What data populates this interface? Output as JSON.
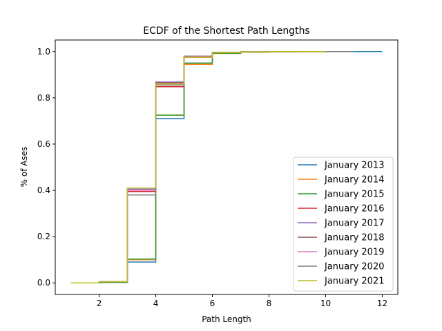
{
  "chart_data": {
    "type": "line",
    "step": "post",
    "title": "ECDF of the Shortest Path Lengths",
    "xlabel": "Path Length",
    "ylabel": "% of Ases",
    "xlim": [
      0.45,
      12.55
    ],
    "ylim": [
      -0.05,
      1.05
    ],
    "xticks": [
      2,
      4,
      6,
      8,
      10,
      12
    ],
    "yticks": [
      0.0,
      0.2,
      0.4,
      0.6,
      0.8,
      1.0
    ],
    "xtick_labels": [
      "2",
      "4",
      "6",
      "8",
      "10",
      "12"
    ],
    "ytick_labels": [
      "0.0",
      "0.2",
      "0.4",
      "0.6",
      "0.8",
      "1.0"
    ],
    "grid": false,
    "legend_position": "lower-right",
    "series": [
      {
        "name": "January 2013",
        "color": "#1f77b4",
        "x": [
          1,
          2,
          3,
          4,
          5,
          6,
          7,
          8,
          9,
          10,
          11,
          12
        ],
        "y": [
          0.0,
          0.002,
          0.09,
          0.71,
          0.95,
          0.993,
          0.998,
          0.999,
          0.9995,
          0.9998,
          1.0,
          1.0
        ]
      },
      {
        "name": "January 2014",
        "color": "#ff7f0e",
        "x": [
          1,
          2,
          3,
          4,
          5,
          6,
          7,
          8,
          9,
          10,
          11
        ],
        "y": [
          0.0,
          0.002,
          0.1,
          0.725,
          0.945,
          0.992,
          0.998,
          0.999,
          0.9995,
          1.0,
          1.0
        ]
      },
      {
        "name": "January 2015",
        "color": "#2ca02c",
        "x": [
          1,
          2,
          3,
          4,
          5,
          6,
          7,
          8,
          9,
          10,
          11
        ],
        "y": [
          0.0,
          0.002,
          0.103,
          0.725,
          0.95,
          0.993,
          0.998,
          0.999,
          0.9995,
          1.0,
          1.0
        ]
      },
      {
        "name": "January 2016",
        "color": "#d62728",
        "x": [
          1,
          2,
          3,
          4,
          5,
          6,
          7,
          8,
          9,
          10,
          11
        ],
        "y": [
          0.0,
          0.005,
          0.395,
          0.848,
          0.978,
          0.996,
          0.999,
          0.9995,
          1.0,
          1.0,
          1.0
        ]
      },
      {
        "name": "January 2017",
        "color": "#9467bd",
        "x": [
          1,
          2,
          3,
          4,
          5,
          6,
          7,
          8,
          9,
          10,
          11
        ],
        "y": [
          0.0,
          0.005,
          0.405,
          0.868,
          0.98,
          0.997,
          0.999,
          1.0,
          1.0,
          1.0,
          1.0
        ]
      },
      {
        "name": "January 2018",
        "color": "#8c564b",
        "x": [
          1,
          2,
          3,
          4,
          5,
          6,
          7,
          8,
          9,
          10,
          11
        ],
        "y": [
          0.0,
          0.005,
          0.41,
          0.865,
          0.98,
          0.997,
          0.999,
          1.0,
          1.0,
          1.0,
          1.0
        ]
      },
      {
        "name": "January 2019",
        "color": "#e377c2",
        "x": [
          1,
          2,
          3,
          4,
          5,
          6,
          7,
          8,
          9,
          10,
          11
        ],
        "y": [
          0.0,
          0.005,
          0.4,
          0.862,
          0.978,
          0.996,
          0.999,
          1.0,
          1.0,
          1.0,
          1.0
        ]
      },
      {
        "name": "January 2020",
        "color": "#7f7f7f",
        "x": [
          1,
          2,
          3,
          4,
          5,
          6,
          7,
          8,
          9,
          10,
          11
        ],
        "y": [
          0.0,
          0.005,
          0.38,
          0.855,
          0.975,
          0.996,
          0.999,
          1.0,
          1.0,
          1.0,
          1.0
        ]
      },
      {
        "name": "January 2021",
        "color": "#bcbd22",
        "x": [
          1,
          2,
          3,
          4,
          5,
          6,
          7,
          8,
          9,
          10
        ],
        "y": [
          0.0,
          0.005,
          0.41,
          0.86,
          0.975,
          0.996,
          0.999,
          1.0,
          1.0,
          1.0
        ]
      }
    ]
  }
}
